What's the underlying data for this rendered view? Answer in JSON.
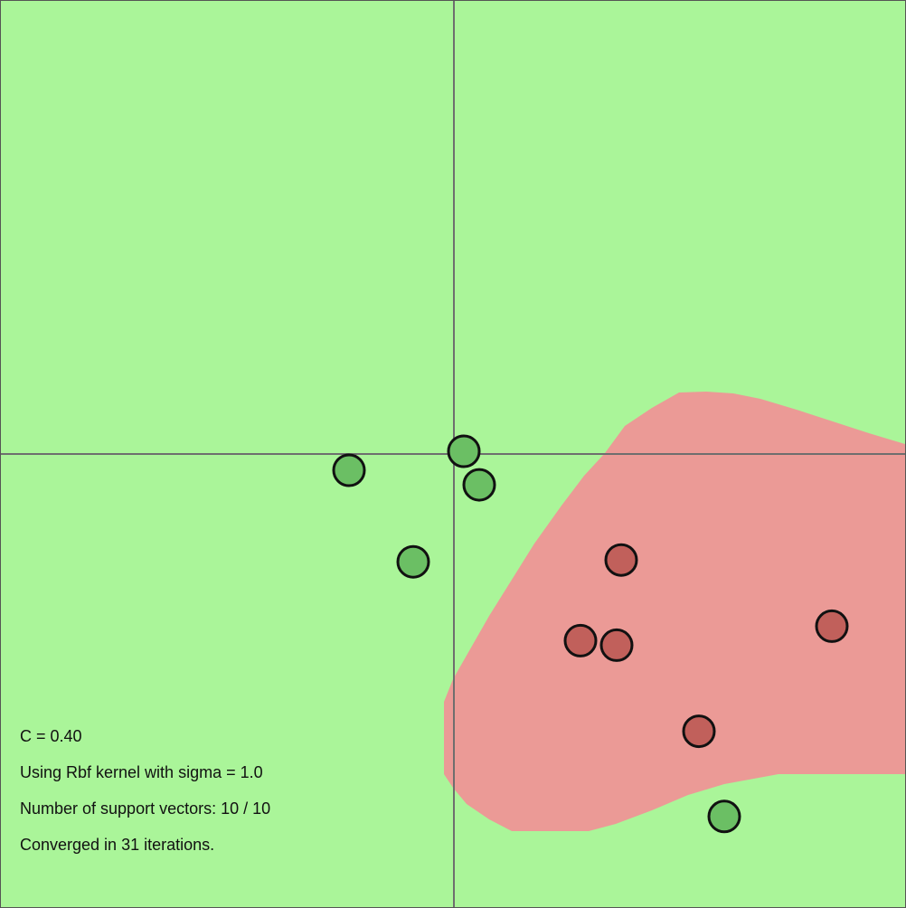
{
  "colors": {
    "positive_region": "#aaf599",
    "negative_region": "#eb9a96",
    "positive_point": "#6bbf64",
    "negative_point": "#c1605b",
    "axis": "#6e6e6e",
    "outline": "#111111"
  },
  "axes": {
    "xlim": [
      -5,
      5
    ],
    "ylim": [
      -5,
      5
    ]
  },
  "points": [
    {
      "label": 1,
      "x": 0.12,
      "y": 0.03
    },
    {
      "label": 1,
      "x": 0.29,
      "y": -0.34
    },
    {
      "label": 1,
      "x": -1.15,
      "y": -0.18
    },
    {
      "label": 1,
      "x": -0.44,
      "y": -1.19
    },
    {
      "label": 1,
      "x": 3.0,
      "y": -4.0
    },
    {
      "label": -1,
      "x": 1.86,
      "y": -1.17
    },
    {
      "label": -1,
      "x": 1.41,
      "y": -2.06
    },
    {
      "label": -1,
      "x": 1.81,
      "y": -2.11
    },
    {
      "label": -1,
      "x": 4.19,
      "y": -1.9
    },
    {
      "label": -1,
      "x": 2.72,
      "y": -3.06
    }
  ],
  "info": {
    "c": "C = 0.40",
    "kernel": "Using Rbf kernel with sigma = 1.0",
    "support_vectors": "Number of support vectors: 10 / 10",
    "converged": "Converged in 31 iterations."
  }
}
